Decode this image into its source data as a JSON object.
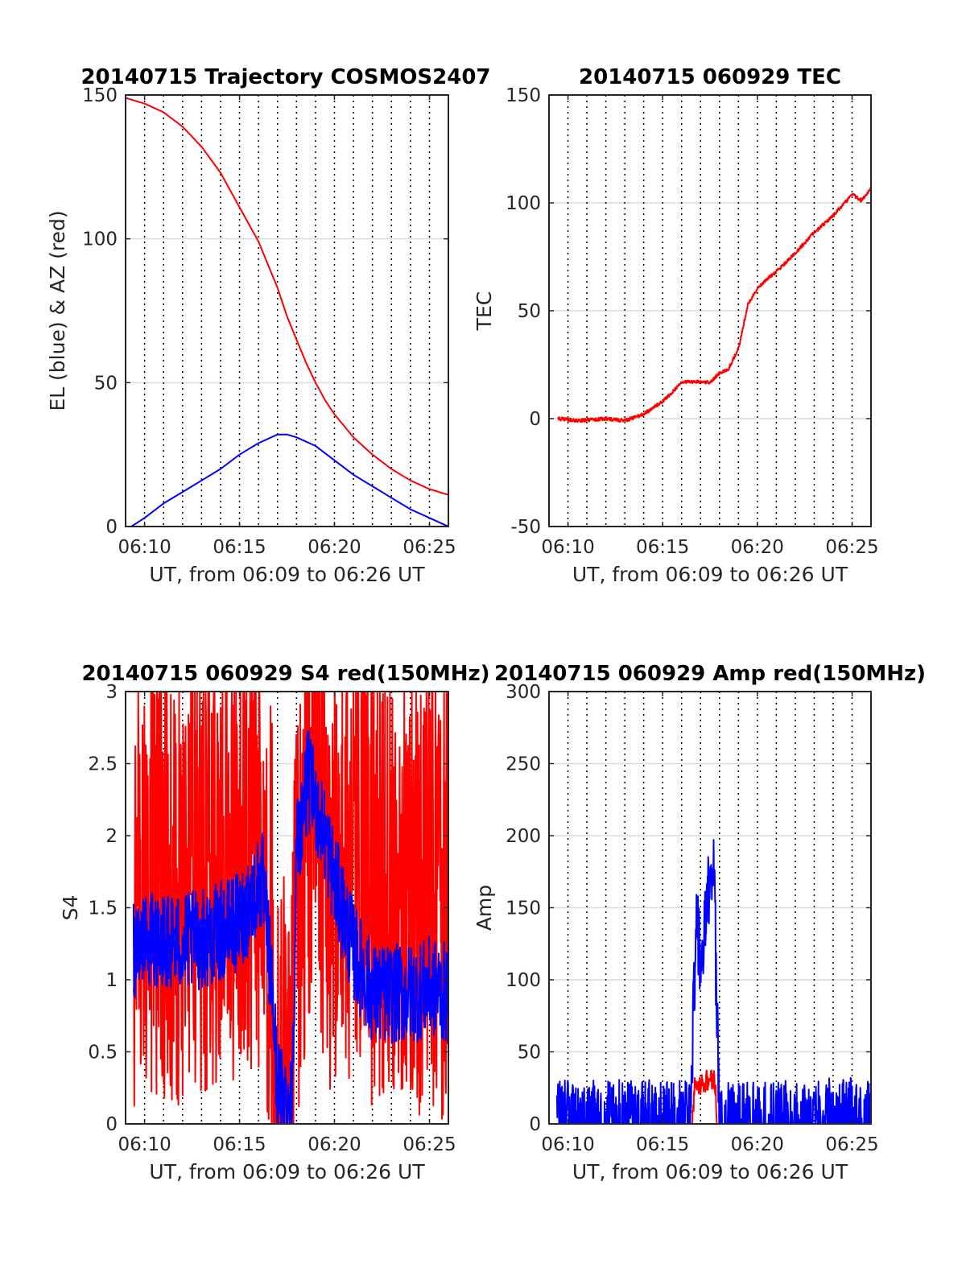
{
  "colors": {
    "red": "#ff0000",
    "blue": "#0000ff",
    "axis": "#262626",
    "grid": "#dcdcdc",
    "vline": "#000000"
  },
  "chart_data": [
    {
      "id": "traj",
      "type": "line",
      "title": "20140715 Trajectory COSMOS2407",
      "xlabel": "UT, from 06:09 to 06:26 UT",
      "ylabel": "EL (blue) & AZ (red)",
      "xlim": [
        6.15,
        6.4333
      ],
      "ylim": [
        0,
        150
      ],
      "xticks": [
        {
          "v": 6.1667,
          "label": "06:10"
        },
        {
          "v": 6.25,
          "label": "06:15"
        },
        {
          "v": 6.3333,
          "label": "06:20"
        },
        {
          "v": 6.4167,
          "label": "06:25"
        }
      ],
      "yticks": [
        {
          "v": 0,
          "label": "0"
        },
        {
          "v": 50,
          "label": "50"
        },
        {
          "v": 100,
          "label": "100"
        },
        {
          "v": 150,
          "label": "150"
        }
      ],
      "series": [
        {
          "color": "#ff0000",
          "x": [
            6.15,
            6.1667,
            6.1833,
            6.2,
            6.2167,
            6.2333,
            6.25,
            6.2667,
            6.2833,
            6.2917,
            6.3,
            6.3083,
            6.3167,
            6.325,
            6.3333,
            6.35,
            6.3667,
            6.3833,
            6.4,
            6.4167,
            6.4333
          ],
          "y": [
            149,
            147,
            144,
            139,
            132,
            123,
            111,
            99,
            83,
            73,
            65,
            57,
            50,
            44,
            39,
            31,
            25,
            20,
            16,
            13,
            11
          ]
        },
        {
          "color": "#0000ff",
          "x": [
            6.155,
            6.1667,
            6.1833,
            6.2,
            6.2167,
            6.2333,
            6.25,
            6.2667,
            6.2833,
            6.2917,
            6.3,
            6.3167,
            6.3333,
            6.35,
            6.3667,
            6.3833,
            6.4,
            6.4167,
            6.4333
          ],
          "y": [
            0,
            3,
            8,
            12,
            16,
            20,
            25,
            29,
            32,
            32,
            31,
            28,
            23,
            18,
            14,
            10,
            6,
            3,
            0
          ]
        }
      ]
    },
    {
      "id": "tec",
      "type": "line",
      "title": "20140715 060929 TEC",
      "xlabel": "UT, from 06:09 to 06:26 UT",
      "ylabel": "TEC",
      "xlim": [
        6.15,
        6.4333
      ],
      "ylim": [
        -50,
        150
      ],
      "xticks": [
        {
          "v": 6.1667,
          "label": "06:10"
        },
        {
          "v": 6.25,
          "label": "06:15"
        },
        {
          "v": 6.3333,
          "label": "06:20"
        },
        {
          "v": 6.4167,
          "label": "06:25"
        }
      ],
      "yticks": [
        {
          "v": -50,
          "label": "-50"
        },
        {
          "v": 0,
          "label": "0"
        },
        {
          "v": 50,
          "label": "50"
        },
        {
          "v": 100,
          "label": "100"
        },
        {
          "v": 150,
          "label": "150"
        }
      ],
      "series": [
        {
          "color": "#ff0000",
          "noise": 0.8,
          "x": [
            6.158,
            6.175,
            6.2,
            6.2167,
            6.233,
            6.25,
            6.258,
            6.267,
            6.275,
            6.2917,
            6.3,
            6.308,
            6.317,
            6.325,
            6.333,
            6.342,
            6.35,
            6.367,
            6.383,
            6.4,
            6.417,
            6.425,
            6.4333
          ],
          "y": [
            0,
            -1,
            0,
            -1,
            2,
            8,
            12,
            17,
            17,
            17,
            21,
            23,
            33,
            53,
            60,
            65,
            68,
            77,
            86,
            94,
            104,
            101,
            107
          ]
        }
      ]
    },
    {
      "id": "s4",
      "type": "line",
      "title": "20140715 060929 S4 red(150MHz)",
      "xlabel": "UT, from 06:09 to 06:26 UT",
      "ylabel": "S4",
      "xlim": [
        6.15,
        6.4333
      ],
      "ylim": [
        0,
        3
      ],
      "xticks": [
        {
          "v": 6.1667,
          "label": "06:10"
        },
        {
          "v": 6.25,
          "label": "06:15"
        },
        {
          "v": 6.3333,
          "label": "06:20"
        },
        {
          "v": 6.4167,
          "label": "06:25"
        }
      ],
      "yticks": [
        {
          "v": 0,
          "label": "0"
        },
        {
          "v": 0.5,
          "label": "0.5"
        },
        {
          "v": 1,
          "label": "1"
        },
        {
          "v": 1.5,
          "label": "1.5"
        },
        {
          "v": 2,
          "label": "2"
        },
        {
          "v": 2.5,
          "label": "2.5"
        },
        {
          "v": 3,
          "label": "3"
        }
      ],
      "series": [
        {
          "color": "#ff0000",
          "noise": 1.6,
          "clip": [
            0,
            3
          ],
          "x": [
            6.157,
            6.175,
            6.2,
            6.225,
            6.25,
            6.27,
            6.279,
            6.283,
            6.29,
            6.296,
            6.3,
            6.315,
            6.333,
            6.35,
            6.367,
            6.383,
            6.4,
            6.417,
            6.433
          ],
          "y": [
            1.6,
            1.8,
            1.7,
            1.8,
            1.9,
            2.0,
            1.2,
            0.2,
            0.15,
            0.15,
            1.5,
            2.4,
            1.7,
            1.9,
            1.7,
            1.8,
            1.6,
            1.7,
            1.6
          ]
        },
        {
          "color": "#0000ff",
          "noise": 0.35,
          "clip": [
            0,
            3
          ],
          "x": [
            6.157,
            6.175,
            6.2,
            6.225,
            6.25,
            6.27,
            6.279,
            6.283,
            6.29,
            6.296,
            6.3,
            6.31,
            6.325,
            6.333,
            6.35,
            6.367,
            6.383,
            6.4,
            6.417,
            6.433
          ],
          "y": [
            1.2,
            1.3,
            1.25,
            1.3,
            1.4,
            1.7,
            0.9,
            0.25,
            0.2,
            0.15,
            1.9,
            2.4,
            2.0,
            1.7,
            1.2,
            0.9,
            0.9,
            0.9,
            0.95,
            0.9
          ]
        }
      ]
    },
    {
      "id": "amp",
      "type": "line",
      "title": "20140715 060929 Amp red(150MHz)",
      "xlabel": "UT, from 06:09 to 06:26 UT",
      "ylabel": "Amp",
      "xlim": [
        6.15,
        6.4333
      ],
      "ylim": [
        0,
        300
      ],
      "xticks": [
        {
          "v": 6.1667,
          "label": "06:10"
        },
        {
          "v": 6.25,
          "label": "06:15"
        },
        {
          "v": 6.3333,
          "label": "06:20"
        },
        {
          "v": 6.4167,
          "label": "06:25"
        }
      ],
      "yticks": [
        {
          "v": 0,
          "label": "0"
        },
        {
          "v": 50,
          "label": "50"
        },
        {
          "v": 100,
          "label": "100"
        },
        {
          "v": 150,
          "label": "150"
        },
        {
          "v": 200,
          "label": "200"
        },
        {
          "v": 250,
          "label": "250"
        },
        {
          "v": 300,
          "label": "300"
        }
      ],
      "series": [
        {
          "color": "#ff0000",
          "noise": 8,
          "x": [
            6.276,
            6.278,
            6.282,
            6.29,
            6.296,
            6.298
          ],
          "y": [
            0,
            25,
            28,
            30,
            30,
            0
          ]
        },
        {
          "color": "#0000ff",
          "noise": 30,
          "x": [
            6.157,
            6.2,
            6.25,
            6.275,
            6.277,
            6.28,
            6.283,
            6.287,
            6.291,
            6.295,
            6.297,
            6.3,
            6.333,
            6.367,
            6.383,
            6.4,
            6.433
          ],
          "y": [
            1,
            1,
            1,
            1,
            90,
            140,
            110,
            130,
            165,
            190,
            100,
            1,
            1,
            1,
            2,
            3,
            2
          ]
        }
      ]
    }
  ]
}
